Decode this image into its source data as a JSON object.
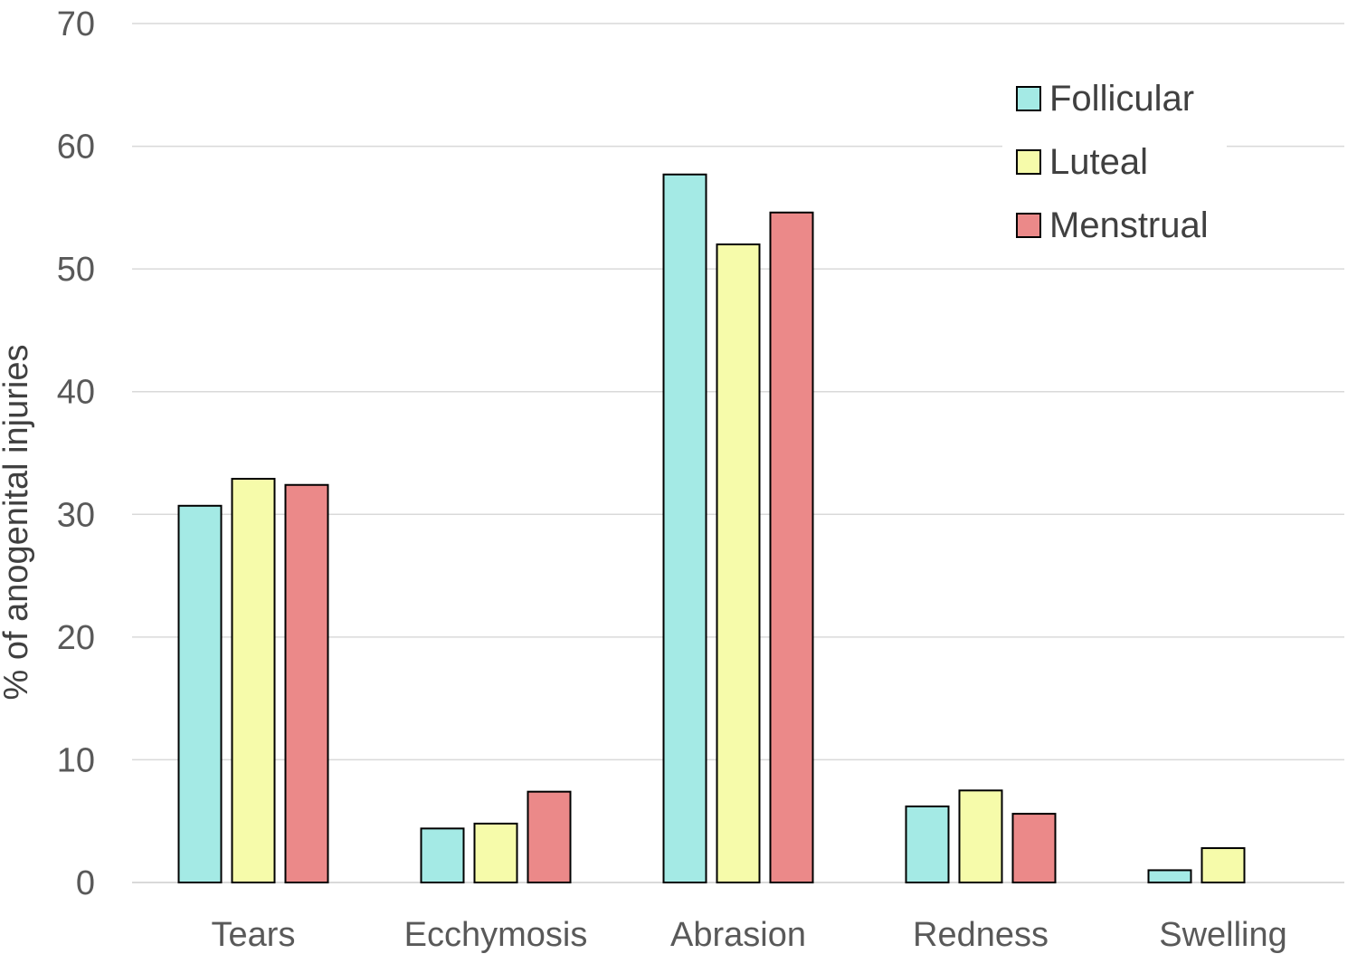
{
  "chart_data": {
    "type": "bar",
    "title": "",
    "xlabel": "",
    "ylabel": "% of anogenital injuries",
    "ylim": [
      0,
      70
    ],
    "yticks": [
      0,
      10,
      20,
      30,
      40,
      50,
      60,
      70
    ],
    "grid": true,
    "legend_position": "top-right",
    "categories": [
      "Tears",
      "Ecchymosis",
      "Abrasion",
      "Redness",
      "Swelling"
    ],
    "series": [
      {
        "name": "Follicular",
        "color": "#A4EAE5",
        "values": [
          30.7,
          4.4,
          57.7,
          6.2,
          1.0
        ]
      },
      {
        "name": "Luteal",
        "color": "#F6FBAA",
        "values": [
          32.9,
          4.8,
          52.0,
          7.5,
          2.8
        ]
      },
      {
        "name": "Menstrual",
        "color": "#EB8989",
        "values": [
          32.4,
          7.4,
          54.6,
          5.6,
          null
        ]
      }
    ]
  }
}
